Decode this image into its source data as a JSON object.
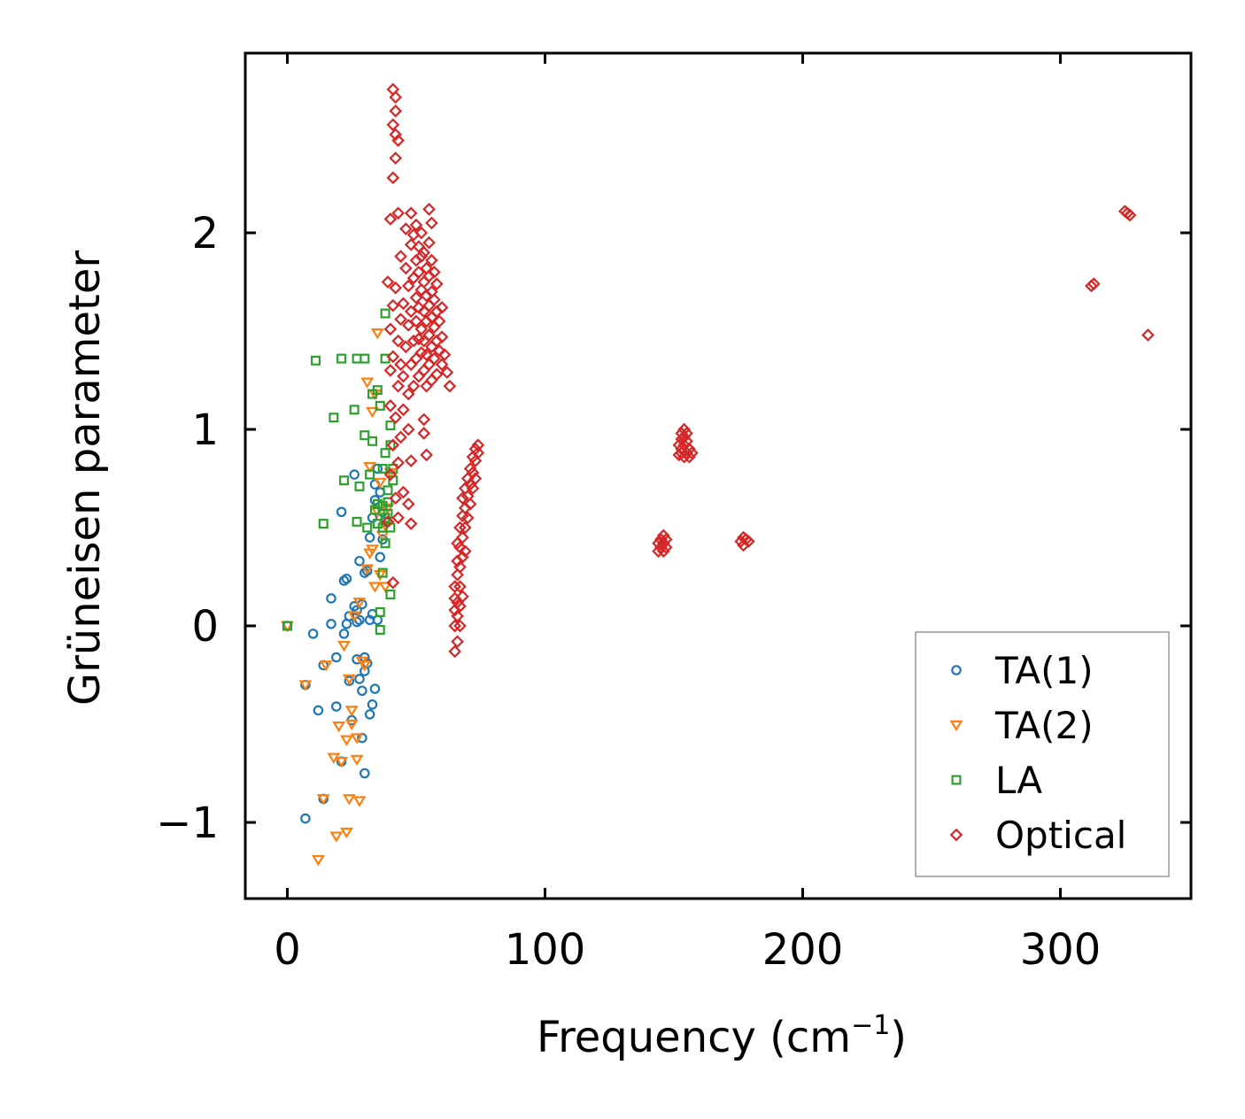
{
  "chart_data": {
    "type": "scatter",
    "title": "",
    "xlabel": "Frequency (cm",
    "xlabel_sup": "−1",
    "xlabel_close": ")",
    "ylabel": "Grüneisen parameter",
    "xlim": [
      -17,
      352
    ],
    "ylim": [
      -1.4,
      2.9
    ],
    "xticks": [
      0,
      100,
      200,
      300
    ],
    "xtick_labels": [
      "0",
      "100",
      "200",
      "300"
    ],
    "yticks": [
      -1,
      0,
      1,
      2
    ],
    "ytick_labels": [
      "−1",
      "0",
      "1",
      "2"
    ],
    "legend_position": "bottom-right",
    "series": [
      {
        "name": "TA(1)",
        "marker": "circle",
        "color": "#1f77b4",
        "points": [
          [
            0,
            0
          ],
          [
            7,
            -0.98
          ],
          [
            7,
            -0.3
          ],
          [
            10,
            -0.04
          ],
          [
            12,
            -0.43
          ],
          [
            14,
            -0.2
          ],
          [
            14,
            -0.88
          ],
          [
            17,
            0.01
          ],
          [
            17,
            0.14
          ],
          [
            19,
            -0.16
          ],
          [
            19,
            -0.41
          ],
          [
            21,
            -0.69
          ],
          [
            21,
            0.58
          ],
          [
            22,
            -0.04
          ],
          [
            22,
            0.23
          ],
          [
            23,
            0.01
          ],
          [
            23,
            0.24
          ],
          [
            24,
            -0.28
          ],
          [
            24,
            0.05
          ],
          [
            25,
            -0.48
          ],
          [
            26,
            0.1
          ],
          [
            26,
            0.77
          ],
          [
            27,
            -0.17
          ],
          [
            27,
            0.08
          ],
          [
            27,
            0.02
          ],
          [
            28,
            -0.27
          ],
          [
            28,
            0.03
          ],
          [
            28,
            0.33
          ],
          [
            29,
            -0.57
          ],
          [
            29,
            0.11
          ],
          [
            29,
            -0.33
          ],
          [
            30,
            -0.23
          ],
          [
            30,
            0.27
          ],
          [
            30,
            -0.75
          ],
          [
            30,
            -0.16
          ],
          [
            31,
            0.28
          ],
          [
            31,
            -0.19
          ],
          [
            32,
            0.03
          ],
          [
            32,
            0.45
          ],
          [
            32,
            -0.45
          ],
          [
            33,
            -0.4
          ],
          [
            33,
            0.06
          ],
          [
            33,
            0.55
          ],
          [
            34,
            0.64
          ],
          [
            34,
            -0.32
          ],
          [
            34,
            0.72
          ],
          [
            35,
            0.03
          ],
          [
            35,
            0.8
          ],
          [
            36,
            0.68
          ],
          [
            36,
            0.35
          ],
          [
            37,
            0.58
          ],
          [
            37,
            0.44
          ],
          [
            38,
            0.53
          ]
        ]
      },
      {
        "name": "TA(2)",
        "marker": "triangle-down",
        "color": "#ff7f0e",
        "points": [
          [
            0,
            0
          ],
          [
            7,
            -0.3
          ],
          [
            12,
            -1.19
          ],
          [
            14,
            -0.88
          ],
          [
            15,
            -0.2
          ],
          [
            18,
            -0.67
          ],
          [
            19,
            -1.07
          ],
          [
            20,
            -0.51
          ],
          [
            21,
            -0.69
          ],
          [
            22,
            -0.1
          ],
          [
            23,
            -1.05
          ],
          [
            23,
            -0.58
          ],
          [
            24,
            -0.27
          ],
          [
            24,
            -0.88
          ],
          [
            25,
            -0.43
          ],
          [
            25,
            -0.5
          ],
          [
            26,
            0.05
          ],
          [
            27,
            -0.57
          ],
          [
            27,
            -0.68
          ],
          [
            28,
            -0.89
          ],
          [
            28,
            0.12
          ],
          [
            29,
            -0.18
          ],
          [
            30,
            -0.2
          ],
          [
            31,
            0.29
          ],
          [
            31,
            1.24
          ],
          [
            32,
            0.37
          ],
          [
            32,
            0.81
          ],
          [
            33,
            0.39
          ],
          [
            33,
            1.09
          ],
          [
            34,
            0.2
          ],
          [
            34,
            1.18
          ],
          [
            35,
            0.58
          ],
          [
            35,
            1.49
          ],
          [
            36,
            0.73
          ],
          [
            36,
            0.26
          ],
          [
            37,
            0.46
          ],
          [
            38,
            0.2
          ],
          [
            38,
            0.51
          ],
          [
            39,
            0.6
          ],
          [
            40,
            0.78
          ]
        ]
      },
      {
        "name": "LA",
        "marker": "square",
        "color": "#2ca02c",
        "points": [
          [
            0,
            0
          ],
          [
            11,
            1.35
          ],
          [
            14,
            0.52
          ],
          [
            18,
            1.06
          ],
          [
            21,
            1.36
          ],
          [
            22,
            0.74
          ],
          [
            26,
            1.1
          ],
          [
            27,
            1.36
          ],
          [
            27,
            0.53
          ],
          [
            28,
            0.71
          ],
          [
            30,
            1.36
          ],
          [
            30,
            0.97
          ],
          [
            31,
            0.5
          ],
          [
            32,
            0.77
          ],
          [
            33,
            0.94
          ],
          [
            33,
            1.18
          ],
          [
            34,
            0.59
          ],
          [
            35,
            0.62
          ],
          [
            35,
            0.52
          ],
          [
            35,
            1.2
          ],
          [
            36,
            0.07
          ],
          [
            36,
            -0.02
          ],
          [
            36,
            1.12
          ],
          [
            37,
            0.61
          ],
          [
            37,
            0.27
          ],
          [
            37,
            0.8
          ],
          [
            37,
            0.5
          ],
          [
            38,
            1.36
          ],
          [
            38,
            0.42
          ],
          [
            38,
            0.88
          ],
          [
            38,
            0.55
          ],
          [
            38,
            1.59
          ],
          [
            39,
            0.63
          ],
          [
            39,
            0.69
          ],
          [
            39,
            0.57
          ],
          [
            40,
            0.92
          ],
          [
            40,
            0.5
          ],
          [
            40,
            0.16
          ],
          [
            40,
            1.02
          ],
          [
            41,
            0.8
          ],
          [
            41,
            0.74
          ]
        ]
      },
      {
        "name": "Optical",
        "marker": "diamond",
        "color": "#d62728",
        "points": [
          [
            39,
            0.53
          ],
          [
            39,
            1.75
          ],
          [
            40,
            0.77
          ],
          [
            40,
            1.12
          ],
          [
            40,
            1.3
          ],
          [
            40,
            1.51
          ],
          [
            40,
            2.07
          ],
          [
            41,
            0.22
          ],
          [
            41,
            0.92
          ],
          [
            41,
            1.37
          ],
          [
            41,
            1.63
          ],
          [
            41,
            2.28
          ],
          [
            41,
            2.55
          ],
          [
            41,
            2.73
          ],
          [
            42,
            0.65
          ],
          [
            42,
            1.06
          ],
          [
            42,
            1.72
          ],
          [
            42,
            2.38
          ],
          [
            42,
            2.5
          ],
          [
            42,
            2.62
          ],
          [
            42,
            2.69
          ],
          [
            43,
            0.55
          ],
          [
            43,
            0.83
          ],
          [
            43,
            1.22
          ],
          [
            43,
            1.45
          ],
          [
            43,
            2.1
          ],
          [
            43,
            2.47
          ],
          [
            44,
            0.96
          ],
          [
            44,
            1.33
          ],
          [
            44,
            1.56
          ],
          [
            44,
            1.88
          ],
          [
            45,
            0.68
          ],
          [
            45,
            1.1
          ],
          [
            45,
            1.27
          ],
          [
            45,
            1.64
          ],
          [
            46,
            1.42
          ],
          [
            46,
            1.82
          ],
          [
            46,
            2.02
          ],
          [
            47,
            0.62
          ],
          [
            47,
            1.0
          ],
          [
            47,
            1.18
          ],
          [
            47,
            1.53
          ],
          [
            47,
            1.73
          ],
          [
            48,
            0.52
          ],
          [
            48,
            0.84
          ],
          [
            48,
            1.33
          ],
          [
            48,
            1.6
          ],
          [
            48,
            1.94
          ],
          [
            48,
            2.1
          ],
          [
            49,
            1.22
          ],
          [
            49,
            1.45
          ],
          [
            49,
            1.77
          ],
          [
            49,
            1.99
          ],
          [
            50,
            1.36
          ],
          [
            50,
            1.55
          ],
          [
            50,
            1.67
          ],
          [
            50,
            1.86
          ],
          [
            50,
            2.04
          ],
          [
            51,
            1.27
          ],
          [
            51,
            1.46
          ],
          [
            51,
            1.62
          ],
          [
            51,
            1.8
          ],
          [
            51,
            1.93
          ],
          [
            52,
            1.39
          ],
          [
            52,
            1.51
          ],
          [
            52,
            1.71
          ],
          [
            52,
            1.88
          ],
          [
            52,
            2.0
          ],
          [
            53,
            1.3
          ],
          [
            53,
            1.45
          ],
          [
            53,
            1.6
          ],
          [
            53,
            1.75
          ],
          [
            53,
            1.9
          ],
          [
            53,
            1.05
          ],
          [
            53,
            0.98
          ],
          [
            54,
            1.22
          ],
          [
            54,
            1.38
          ],
          [
            54,
            1.55
          ],
          [
            54,
            1.68
          ],
          [
            54,
            1.82
          ],
          [
            54,
            0.87
          ],
          [
            55,
            1.33
          ],
          [
            55,
            1.48
          ],
          [
            55,
            1.63
          ],
          [
            55,
            1.78
          ],
          [
            55,
            1.95
          ],
          [
            55,
            2.12
          ],
          [
            56,
            1.25
          ],
          [
            56,
            1.42
          ],
          [
            56,
            1.57
          ],
          [
            56,
            1.7
          ],
          [
            56,
            1.86
          ],
          [
            56,
            2.05
          ],
          [
            57,
            1.36
          ],
          [
            57,
            1.52
          ],
          [
            57,
            1.66
          ],
          [
            57,
            1.8
          ],
          [
            58,
            1.28
          ],
          [
            58,
            1.45
          ],
          [
            58,
            1.6
          ],
          [
            58,
            1.74
          ],
          [
            59,
            1.4
          ],
          [
            59,
            1.55
          ],
          [
            60,
            1.33
          ],
          [
            60,
            1.47
          ],
          [
            60,
            1.62
          ],
          [
            61,
            1.38
          ],
          [
            62,
            1.29
          ],
          [
            63,
            1.22
          ],
          [
            65,
            -0.13
          ],
          [
            65,
            0.0
          ],
          [
            65,
            0.08
          ],
          [
            65,
            0.14
          ],
          [
            65,
            0.2
          ],
          [
            66,
            -0.08
          ],
          [
            66,
            0.05
          ],
          [
            66,
            0.12
          ],
          [
            66,
            0.26
          ],
          [
            66,
            0.33
          ],
          [
            66,
            0.42
          ],
          [
            67,
            0.0
          ],
          [
            67,
            0.1
          ],
          [
            67,
            0.2
          ],
          [
            67,
            0.3
          ],
          [
            67,
            0.4
          ],
          [
            67,
            0.5
          ],
          [
            68,
            0.15
          ],
          [
            68,
            0.35
          ],
          [
            68,
            0.45
          ],
          [
            68,
            0.56
          ],
          [
            68,
            0.65
          ],
          [
            69,
            0.38
          ],
          [
            69,
            0.5
          ],
          [
            69,
            0.6
          ],
          [
            69,
            0.7
          ],
          [
            70,
            0.55
          ],
          [
            70,
            0.66
          ],
          [
            70,
            0.75
          ],
          [
            71,
            0.62
          ],
          [
            71,
            0.72
          ],
          [
            71,
            0.8
          ],
          [
            72,
            0.7
          ],
          [
            72,
            0.78
          ],
          [
            72,
            0.86
          ],
          [
            73,
            0.75
          ],
          [
            73,
            0.84
          ],
          [
            73,
            0.9
          ],
          [
            74,
            0.88
          ],
          [
            74,
            0.92
          ],
          [
            144,
            0.38
          ],
          [
            144,
            0.42
          ],
          [
            145,
            0.4
          ],
          [
            145,
            0.44
          ],
          [
            146,
            0.42
          ],
          [
            146,
            0.46
          ],
          [
            146,
            0.38
          ],
          [
            147,
            0.44
          ],
          [
            147,
            0.4
          ],
          [
            152,
            0.87
          ],
          [
            152,
            0.92
          ],
          [
            153,
            0.88
          ],
          [
            153,
            0.95
          ],
          [
            153,
            0.98
          ],
          [
            153,
            0.9
          ],
          [
            154,
            0.86
          ],
          [
            154,
            0.92
          ],
          [
            154,
            0.96
          ],
          [
            154,
            1.0
          ],
          [
            155,
            0.88
          ],
          [
            155,
            0.94
          ],
          [
            155,
            0.98
          ],
          [
            156,
            0.86
          ],
          [
            156,
            0.9
          ],
          [
            157,
            0.88
          ],
          [
            176,
            0.43
          ],
          [
            177,
            0.45
          ],
          [
            177,
            0.41
          ],
          [
            178,
            0.44
          ],
          [
            179,
            0.43
          ],
          [
            312,
            1.73
          ],
          [
            313,
            1.74
          ],
          [
            325,
            2.11
          ],
          [
            326,
            2.1
          ],
          [
            327,
            2.09
          ],
          [
            334,
            1.48
          ]
        ]
      }
    ]
  }
}
